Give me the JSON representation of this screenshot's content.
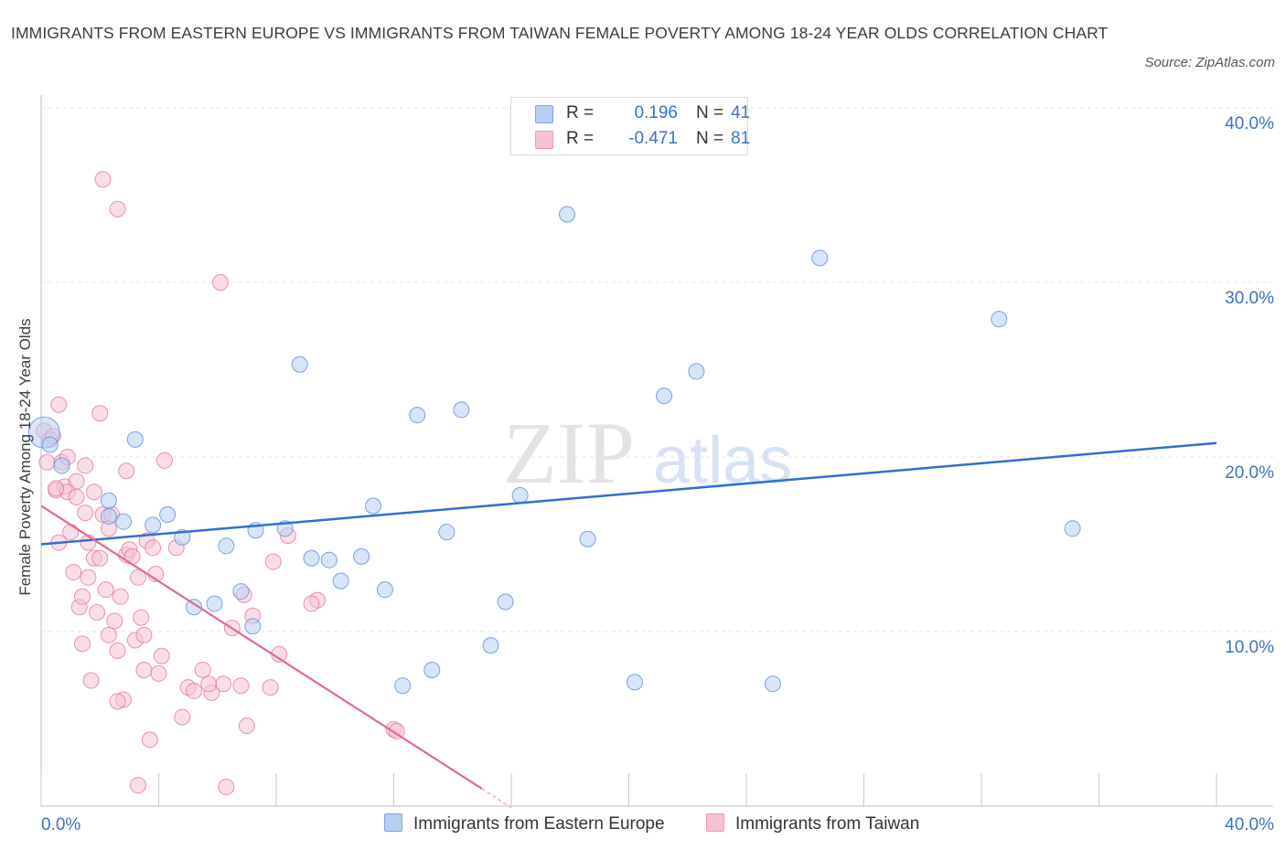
{
  "title": "IMMIGRANTS FROM EASTERN EUROPE VS IMMIGRANTS FROM TAIWAN FEMALE POVERTY AMONG 18-24 YEAR OLDS CORRELATION CHART",
  "source": "Source: ZipAtlas.com",
  "watermark": {
    "zip": "ZIP",
    "atlas": "atlas"
  },
  "colors": {
    "blue": "#5b8fd9",
    "blue_fill": "#b8cff3",
    "blue_line": "#2f6fce",
    "pink": "#e06a94",
    "pink_fill": "#f6c2d3",
    "pink_line": "#e06a94",
    "axis_text": "#3a72c8"
  },
  "legend": {
    "rows": [
      {
        "r_label": "R =",
        "r_value": "0.196",
        "n_label": "N =",
        "n_value": "41"
      },
      {
        "r_label": "R =",
        "r_value": "-0.471",
        "n_label": "N =",
        "n_value": "81"
      }
    ]
  },
  "bottom_legend": {
    "eastern_europe": "Immigrants from Eastern Europe",
    "taiwan": "Immigrants from Taiwan"
  },
  "chart_data": {
    "type": "scatter",
    "title": "IMMIGRANTS FROM EASTERN EUROPE VS IMMIGRANTS FROM TAIWAN FEMALE POVERTY AMONG 18-24 YEAR OLDS CORRELATION CHART",
    "xlabel": "",
    "ylabel": "Female Poverty Among 18-24 Year Olds",
    "xlim": [
      0,
      40
    ],
    "ylim": [
      0,
      40
    ],
    "x_tick_labels": [
      "0.0%",
      "40.0%"
    ],
    "y_tick_labels": [
      "10.0%",
      "20.0%",
      "30.0%",
      "40.0%"
    ],
    "y_tick_values": [
      10,
      20,
      30,
      40
    ],
    "grid": true,
    "series": [
      {
        "name": "Immigrants from Eastern Europe",
        "color": "#5b8fd9",
        "r": 0.196,
        "n": 41,
        "trend": [
          [
            0,
            15.0
          ],
          [
            40,
            20.8
          ]
        ],
        "points": [
          [
            0.1,
            21.4
          ],
          [
            0.7,
            19.5
          ],
          [
            2.3,
            17.5
          ],
          [
            2.8,
            16.3
          ],
          [
            3.2,
            21.0
          ],
          [
            3.8,
            16.1
          ],
          [
            4.3,
            16.7
          ],
          [
            4.8,
            15.4
          ],
          [
            5.2,
            11.4
          ],
          [
            5.9,
            11.6
          ],
          [
            6.3,
            14.9
          ],
          [
            6.8,
            12.3
          ],
          [
            7.2,
            10.3
          ],
          [
            7.3,
            15.8
          ],
          [
            8.3,
            15.9
          ],
          [
            8.8,
            25.3
          ],
          [
            9.2,
            14.2
          ],
          [
            9.8,
            14.1
          ],
          [
            10.2,
            12.9
          ],
          [
            10.9,
            14.3
          ],
          [
            11.3,
            17.2
          ],
          [
            11.7,
            12.4
          ],
          [
            12.3,
            6.9
          ],
          [
            12.8,
            22.4
          ],
          [
            13.3,
            7.8
          ],
          [
            13.8,
            15.7
          ],
          [
            14.3,
            22.7
          ],
          [
            15.3,
            9.2
          ],
          [
            15.8,
            11.7
          ],
          [
            16.3,
            17.8
          ],
          [
            17.9,
            33.9
          ],
          [
            18.6,
            15.3
          ],
          [
            20.2,
            7.1
          ],
          [
            21.2,
            23.5
          ],
          [
            22.3,
            24.9
          ],
          [
            24.9,
            7.0
          ],
          [
            26.5,
            31.4
          ],
          [
            32.6,
            27.9
          ],
          [
            35.1,
            15.9
          ],
          [
            2.3,
            16.6
          ],
          [
            0.3,
            20.7
          ]
        ]
      },
      {
        "name": "Immigrants from Taiwan",
        "color": "#e06a94",
        "r": -0.471,
        "n": 81,
        "trend": [
          [
            0,
            17.2
          ],
          [
            15,
            1.0
          ]
        ],
        "trend_dashed": [
          [
            15,
            1.0
          ],
          [
            16,
            -0.1
          ]
        ],
        "points": [
          [
            0.1,
            21.5
          ],
          [
            0.2,
            19.7
          ],
          [
            0.3,
            21.0
          ],
          [
            0.5,
            18.1
          ],
          [
            0.6,
            23.0
          ],
          [
            0.7,
            19.7
          ],
          [
            0.8,
            18.3
          ],
          [
            0.9,
            20.0
          ],
          [
            1.0,
            15.7
          ],
          [
            1.1,
            13.4
          ],
          [
            1.2,
            18.6
          ],
          [
            1.3,
            11.4
          ],
          [
            1.4,
            9.3
          ],
          [
            1.4,
            12.0
          ],
          [
            1.5,
            16.8
          ],
          [
            1.6,
            15.1
          ],
          [
            1.6,
            13.1
          ],
          [
            1.7,
            7.2
          ],
          [
            1.8,
            14.2
          ],
          [
            1.8,
            18.0
          ],
          [
            1.9,
            11.1
          ],
          [
            2.0,
            22.5
          ],
          [
            2.1,
            16.7
          ],
          [
            2.2,
            12.4
          ],
          [
            2.3,
            9.8
          ],
          [
            2.3,
            15.9
          ],
          [
            2.4,
            16.7
          ],
          [
            2.5,
            10.6
          ],
          [
            2.6,
            8.9
          ],
          [
            2.6,
            34.2
          ],
          [
            2.7,
            12.0
          ],
          [
            2.8,
            6.1
          ],
          [
            2.9,
            14.4
          ],
          [
            3.0,
            14.7
          ],
          [
            3.1,
            14.3
          ],
          [
            3.2,
            9.5
          ],
          [
            3.3,
            13.1
          ],
          [
            3.4,
            10.8
          ],
          [
            3.5,
            7.8
          ],
          [
            3.6,
            15.2
          ],
          [
            3.7,
            3.8
          ],
          [
            3.8,
            14.8
          ],
          [
            3.9,
            13.3
          ],
          [
            4.1,
            8.6
          ],
          [
            4.2,
            19.8
          ],
          [
            4.6,
            14.8
          ],
          [
            4.8,
            5.1
          ],
          [
            5.0,
            6.8
          ],
          [
            5.2,
            6.6
          ],
          [
            5.5,
            7.8
          ],
          [
            5.8,
            6.5
          ],
          [
            6.2,
            7.0
          ],
          [
            6.5,
            10.2
          ],
          [
            6.8,
            6.9
          ],
          [
            6.9,
            12.1
          ],
          [
            7.0,
            4.6
          ],
          [
            7.2,
            10.9
          ],
          [
            7.8,
            6.8
          ],
          [
            7.9,
            14.0
          ],
          [
            8.1,
            8.7
          ],
          [
            8.4,
            15.5
          ],
          [
            9.4,
            11.8
          ],
          [
            12.0,
            4.4
          ],
          [
            12.1,
            4.3
          ],
          [
            2.1,
            35.9
          ],
          [
            6.1,
            30.0
          ],
          [
            0.4,
            21.2
          ],
          [
            0.9,
            18.0
          ],
          [
            2.6,
            6.0
          ],
          [
            2.9,
            19.2
          ],
          [
            3.5,
            9.8
          ],
          [
            4.0,
            7.6
          ],
          [
            6.3,
            1.1
          ],
          [
            3.3,
            1.2
          ],
          [
            5.7,
            7.0
          ],
          [
            1.2,
            17.7
          ],
          [
            0.5,
            18.2
          ],
          [
            9.2,
            11.6
          ],
          [
            2.0,
            14.2
          ],
          [
            0.6,
            15.1
          ],
          [
            1.5,
            19.5
          ]
        ]
      }
    ]
  }
}
